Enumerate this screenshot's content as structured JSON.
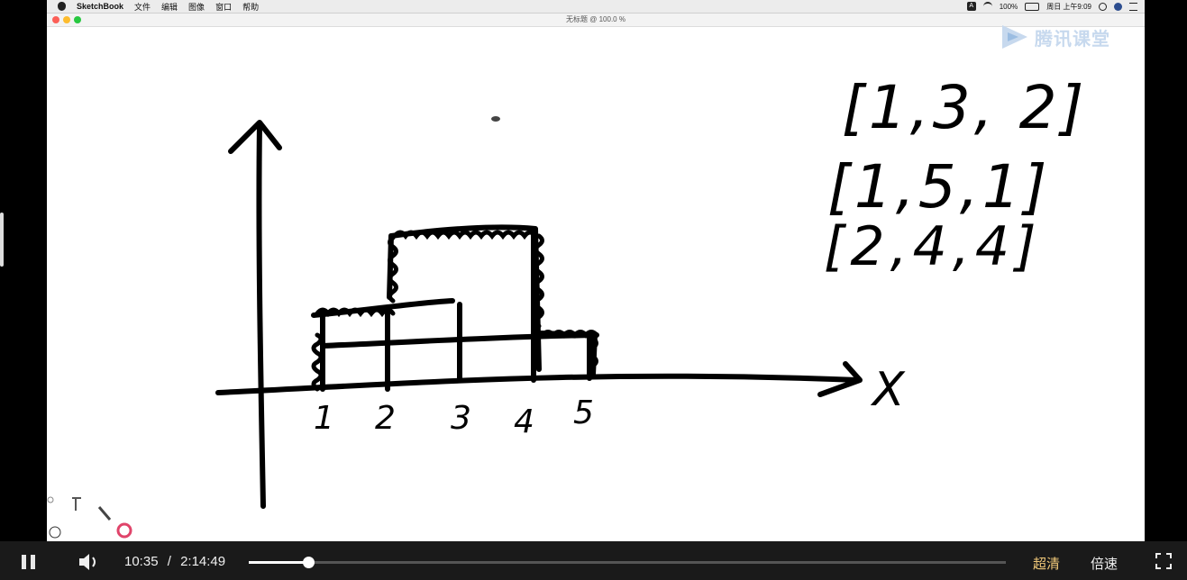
{
  "menubar": {
    "app_name": "SketchBook",
    "menus": [
      "文件",
      "编辑",
      "图像",
      "窗口",
      "帮助"
    ],
    "input_badge": "A",
    "battery": "100%",
    "datetime": "周日 上午9:09"
  },
  "window": {
    "title": "无标题 @ 100.0 %"
  },
  "watermark": {
    "text": "腾讯课堂"
  },
  "sketch": {
    "axis_x_label": "X",
    "x_ticks": [
      "1",
      "2",
      "3",
      "4",
      "5"
    ],
    "lists": [
      "[1,3, 2]",
      "[1,5,1]",
      "[2,4,4]"
    ]
  },
  "player": {
    "current_time": "10:35",
    "separator": "/",
    "total_time": "2:14:49",
    "progress": 0.078,
    "quality_label": "超清",
    "speed_label": "倍速",
    "colors": {
      "quality": "#f0c879",
      "bar_bg": "#1a1a1a"
    }
  }
}
